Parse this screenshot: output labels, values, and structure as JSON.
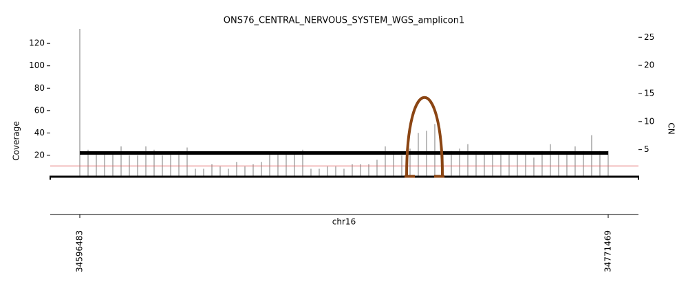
{
  "chart_data": {
    "type": "coverage",
    "title": "ONS76_CENTRAL_NERVOUS_SYSTEM_WGS_amplicon1",
    "xlabel": "chr16",
    "ylabel": "Coverage",
    "y2label": "CN",
    "xlim": [
      34586685,
      34781494
    ],
    "xticks": [
      34596483,
      34771469
    ],
    "ylim": [
      0,
      133
    ],
    "yticks": [
      20,
      40,
      60,
      80,
      100,
      120
    ],
    "y2lim": [
      0,
      26.5
    ],
    "y2ticks": [
      5,
      10,
      15,
      20,
      25
    ],
    "coverage": {
      "color": "#a6a6a6",
      "x": [
        34596483,
        34599217,
        34601951,
        34604685,
        34607419,
        34610153,
        34612887,
        34615621,
        34618355,
        34621089,
        34623823,
        34626557,
        34629291,
        34632025,
        34634759,
        34637493,
        34640227,
        34642961,
        34645695,
        34648429,
        34651163,
        34653897,
        34656631,
        34659365,
        34662099,
        34664833,
        34667567,
        34670301,
        34673035,
        34675769,
        34678503,
        34681237,
        34683971,
        34686705,
        34689439,
        34692173,
        34694907,
        34697641,
        34700375,
        34703109,
        34705843,
        34708577,
        34711311,
        34714045,
        34716779,
        34719513,
        34722247,
        34724981,
        34727715,
        34730449,
        34733183,
        34735917,
        34738651,
        34741385,
        34744119,
        34746853,
        34749587,
        34752321,
        34755055,
        34757789,
        34760523,
        34763257,
        34765991,
        34768725,
        34771459
      ],
      "values": [
        133,
        25,
        22,
        22,
        22,
        28,
        20,
        20,
        28,
        25,
        20,
        22,
        24,
        27,
        8,
        8,
        12,
        10,
        8,
        14,
        10,
        12,
        14,
        23,
        23,
        23,
        23,
        25,
        8,
        8,
        10,
        10,
        8,
        12,
        12,
        12,
        16,
        28,
        24,
        20,
        26,
        40,
        42,
        48,
        24,
        24,
        26,
        30,
        24,
        22,
        24,
        24,
        22,
        22,
        22,
        18,
        24,
        30,
        22,
        22,
        28,
        24,
        38,
        24,
        24
      ]
    },
    "segments": [
      {
        "start": 34596483,
        "end": 34771469,
        "cn": 4.4,
        "color": "#000000"
      }
    ],
    "reference_cn": {
      "value": 2.1,
      "color": "#e06060"
    },
    "breakpoints": [
      {
        "start": 34704712,
        "end": 34716560,
        "color": "#8b4513"
      }
    ]
  }
}
